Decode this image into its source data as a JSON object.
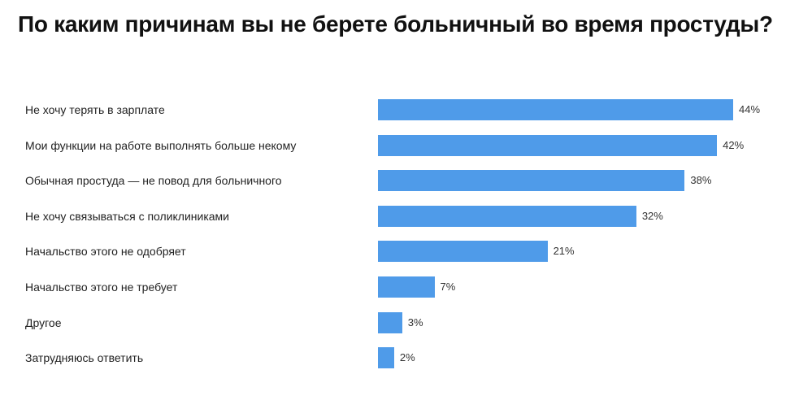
{
  "chart_data": {
    "type": "bar",
    "orientation": "horizontal",
    "title": "По каким причинам вы не берете больничный во время простуды?",
    "categories": [
      "Не хочу терять в зарплате",
      "Мои функции на работе выполнять больше некому",
      "Обычная простуда — не повод для больничного",
      "Не хочу связываться с поликлиниками",
      "Начальство этого не одобряет",
      "Начальство этого не требует",
      "Другое",
      "Затрудняюсь ответить"
    ],
    "values": [
      44,
      42,
      38,
      32,
      21,
      7,
      3,
      2
    ],
    "value_suffix": "%",
    "xlim": [
      0,
      44
    ],
    "grid": false,
    "legend": "none",
    "bar_color": "#4f9be9"
  }
}
